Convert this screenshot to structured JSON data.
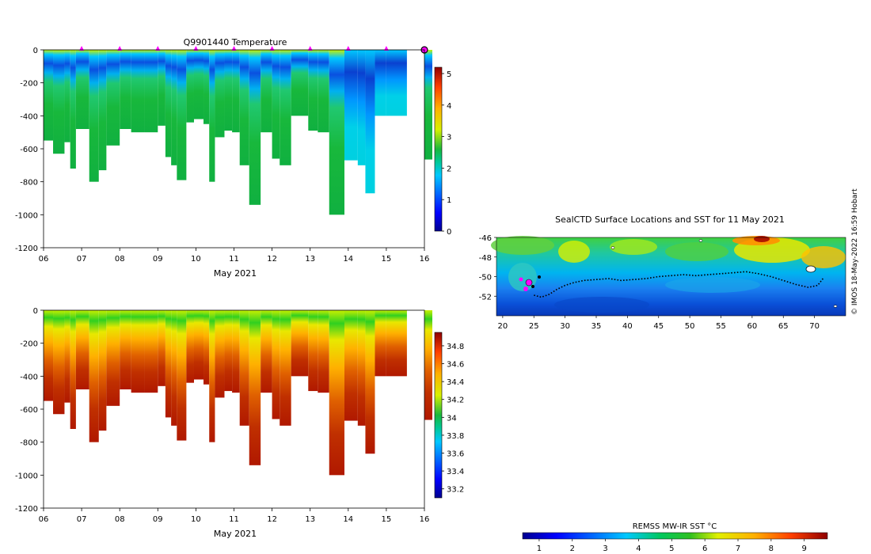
{
  "chart_data": [
    {
      "type": "heatmap",
      "title": "Q9901440  Temperature",
      "xlabel": "May 2021",
      "xticks": [
        "06",
        "07",
        "08",
        "09",
        "10",
        "11",
        "12",
        "13",
        "14",
        "15",
        "16"
      ],
      "xlim": [
        6,
        16
      ],
      "ylim": [
        -1200,
        0
      ],
      "yticks": [
        0,
        -200,
        -400,
        -600,
        -800,
        -1000,
        -1200
      ],
      "colorbar": {
        "range": [
          0,
          5.2
        ],
        "ticks": [
          0,
          1,
          2,
          3,
          4,
          5
        ]
      },
      "surface_markers_day": [
        7,
        8,
        9,
        10,
        11,
        12,
        13,
        14,
        15,
        16
      ],
      "profiles": [
        {
          "day": 6.0,
          "depth": 550
        },
        {
          "day": 6.25,
          "depth": 630
        },
        {
          "day": 6.55,
          "depth": 560
        },
        {
          "day": 6.7,
          "depth": 720
        },
        {
          "day": 6.85,
          "depth": 480
        },
        {
          "day": 7.2,
          "depth": 800
        },
        {
          "day": 7.45,
          "depth": 730
        },
        {
          "day": 7.65,
          "depth": 580
        },
        {
          "day": 8.0,
          "depth": 480
        },
        {
          "day": 8.3,
          "depth": 500
        },
        {
          "day": 8.65,
          "depth": 500
        },
        {
          "day": 9.0,
          "depth": 460
        },
        {
          "day": 9.2,
          "depth": 650
        },
        {
          "day": 9.35,
          "depth": 700
        },
        {
          "day": 9.5,
          "depth": 790
        },
        {
          "day": 9.75,
          "depth": 440
        },
        {
          "day": 9.95,
          "depth": 420
        },
        {
          "day": 10.2,
          "depth": 450
        },
        {
          "day": 10.35,
          "depth": 800
        },
        {
          "day": 10.5,
          "depth": 530
        },
        {
          "day": 10.75,
          "depth": 490
        },
        {
          "day": 10.95,
          "depth": 500
        },
        {
          "day": 11.15,
          "depth": 700
        },
        {
          "day": 11.4,
          "depth": 940
        },
        {
          "day": 11.7,
          "depth": 500
        },
        {
          "day": 12.0,
          "depth": 660
        },
        {
          "day": 12.2,
          "depth": 700
        },
        {
          "day": 12.5,
          "depth": 400
        },
        {
          "day": 12.95,
          "depth": 490
        },
        {
          "day": 13.2,
          "depth": 500
        },
        {
          "day": 13.5,
          "depth": 1000
        },
        {
          "day": 13.9,
          "depth": 670
        },
        {
          "day": 14.25,
          "depth": 700
        },
        {
          "day": 14.45,
          "depth": 870
        },
        {
          "day": 14.7,
          "depth": 400
        },
        {
          "day": 15.0,
          "depth": 400
        },
        {
          "day": 16.0,
          "depth": 665
        }
      ]
    },
    {
      "type": "heatmap",
      "title": "",
      "xlabel": "May 2021",
      "xticks": [
        "06",
        "07",
        "08",
        "09",
        "10",
        "11",
        "12",
        "13",
        "14",
        "15",
        "16"
      ],
      "xlim": [
        6,
        16
      ],
      "ylim": [
        -1200,
        0
      ],
      "yticks": [
        0,
        -200,
        -400,
        -600,
        -800,
        -1000,
        -1200
      ],
      "colorbar": {
        "range": [
          33.1,
          34.95
        ],
        "ticks": [
          33.2,
          33.4,
          33.6,
          33.8,
          34,
          34.2,
          34.4,
          34.6,
          34.8
        ]
      }
    },
    {
      "type": "heatmap",
      "title": "SealCTD Surface Locations and SST for 11 May 2021",
      "xlim": [
        19,
        75
      ],
      "ylim": [
        -54,
        -46
      ],
      "xticks": [
        20,
        25,
        30,
        35,
        40,
        45,
        50,
        55,
        60,
        65,
        70
      ],
      "yticks": [
        -46,
        -48,
        -50,
        -52
      ],
      "track": [
        [
          25.0,
          -51.9
        ],
        [
          26.2,
          -52.1
        ],
        [
          27.5,
          -51.8
        ],
        [
          28.7,
          -51.3
        ],
        [
          30.0,
          -50.9
        ],
        [
          31.5,
          -50.6
        ],
        [
          33.0,
          -50.4
        ],
        [
          35.0,
          -50.3
        ],
        [
          37.0,
          -50.2
        ],
        [
          39.0,
          -50.4
        ],
        [
          41.0,
          -50.3
        ],
        [
          43.0,
          -50.2
        ],
        [
          45.0,
          -50.0
        ],
        [
          47.0,
          -49.9
        ],
        [
          49.0,
          -49.8
        ],
        [
          51.0,
          -49.9
        ],
        [
          53.0,
          -49.8
        ],
        [
          55.0,
          -49.7
        ],
        [
          57.0,
          -49.6
        ],
        [
          59.0,
          -49.5
        ],
        [
          61.0,
          -49.7
        ],
        [
          63.0,
          -50.0
        ],
        [
          65.0,
          -50.4
        ],
        [
          67.0,
          -50.8
        ],
        [
          69.0,
          -51.1
        ],
        [
          70.5,
          -50.9
        ],
        [
          71.5,
          -50.1
        ]
      ],
      "colorbar": {
        "label": "REMSS MW-IR SST °C",
        "range": [
          0.5,
          9.7
        ],
        "ticks": [
          1,
          2,
          3,
          4,
          5,
          6,
          7,
          8,
          9
        ]
      }
    }
  ],
  "watermark": "© IMOS 18-May-2022 16:59 Hobart"
}
